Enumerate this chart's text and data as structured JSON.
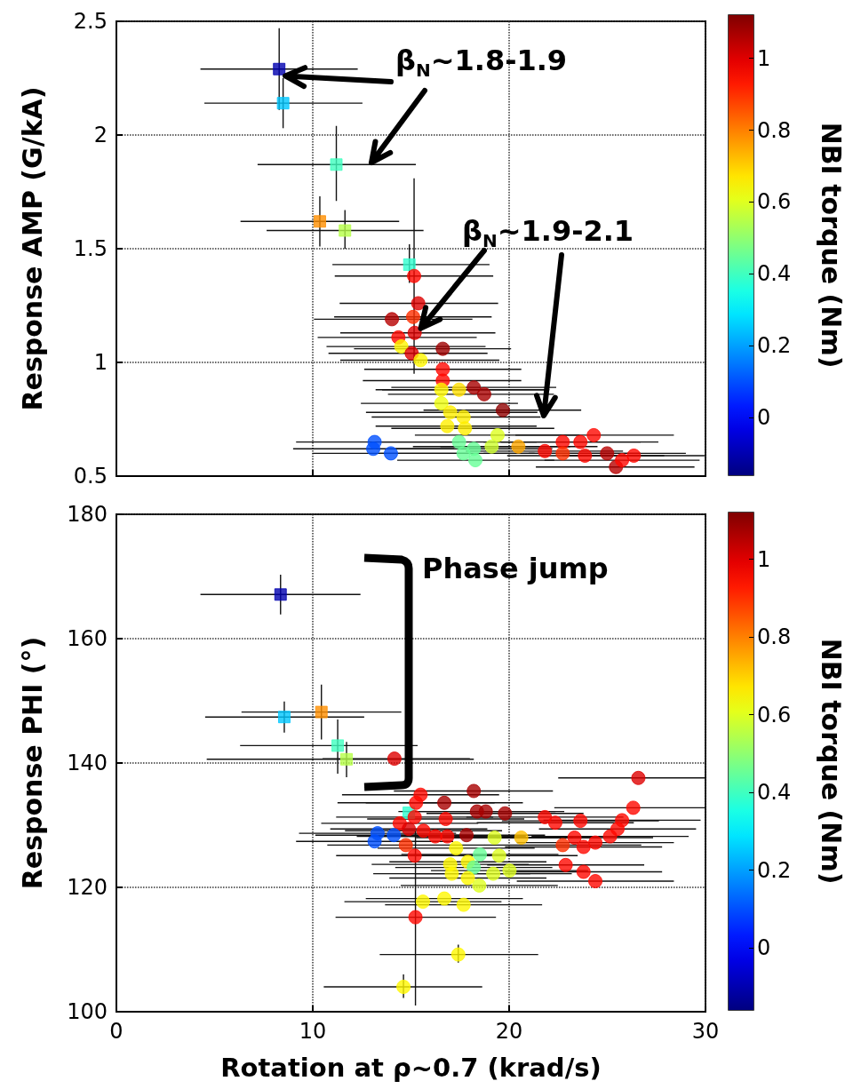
{
  "chart_data": [
    {
      "type": "scatter",
      "ylabel": "Response AMP (G/kA)",
      "clabel": "NBI torque (Nm)",
      "xlim": [
        0,
        30
      ],
      "xticks": [
        0,
        10,
        20,
        30
      ],
      "ylim": [
        0.5,
        2.5
      ],
      "yticks": [
        0.5,
        1,
        1.5,
        2,
        2.5
      ],
      "clim": [
        -0.16,
        1.12
      ],
      "cticks": [
        0,
        0.2,
        0.4,
        0.6,
        0.8,
        1
      ],
      "grid": true,
      "tick_labels": "y",
      "annotations": [
        {
          "text": "β$_{N}$~1.8-1.9",
          "x": 8.6,
          "y": 2.26
        },
        {
          "text": "β$_{N}$~1.9-2.1",
          "x": 15.5,
          "y": 1.15
        }
      ],
      "series": [
        {
          "marker": "square",
          "x": [
            8.29,
            8.49,
            11.2,
            10.36,
            11.64,
            14.92
          ],
          "values": [
            2.29,
            2.14,
            1.87,
            1.62,
            1.58,
            1.43
          ],
          "cvalues": [
            -0.1,
            0.25,
            0.4,
            0.78,
            0.55,
            0.38
          ],
          "colors": [
            "#0000af",
            "#00c7ff",
            "#40ffbf",
            "#ff8f00",
            "#b7ff48",
            "#30ffcf"
          ],
          "xerrors": [
            [
              4.28,
              12.29
            ],
            [
              4.48,
              12.53
            ],
            [
              7.19,
              15.25
            ],
            [
              6.32,
              14.4
            ],
            [
              7.65,
              15.64
            ],
            [
              11.0,
              19.0
            ]
          ],
          "errors": [
            [
              2.11,
              2.47
            ],
            [
              2.03,
              2.25
            ],
            [
              1.71,
              2.04
            ],
            [
              1.51,
              1.73
            ],
            [
              1.5,
              1.67
            ],
            [
              1.35,
              1.52
            ]
          ]
        },
        {
          "marker": "circle",
          "x": [
            15.16,
            15.37,
            14.03,
            15.11,
            15.19,
            14.36,
            14.51,
            15.04,
            15.49,
            16.62,
            16.62,
            16.62,
            16.55,
            17.45,
            18.2,
            18.73,
            16.55,
            19.68,
            17.0,
            17.68,
            16.85,
            17.75,
            19.41,
            17.45,
            20.47,
            18.2,
            17.68,
            18.28,
            19.11,
            13.15,
            13.08,
            13.98,
            24.31,
            22.73,
            23.63,
            21.82,
            22.73,
            23.86,
            24.99,
            26.35,
            25.44,
            25.75
          ],
          "values": [
            1.38,
            1.26,
            1.19,
            1.2,
            1.13,
            1.11,
            1.07,
            1.04,
            1.01,
            1.06,
            0.97,
            0.92,
            0.88,
            0.88,
            0.89,
            0.86,
            0.82,
            0.79,
            0.78,
            0.76,
            0.72,
            0.71,
            0.68,
            0.65,
            0.63,
            0.62,
            0.6,
            0.57,
            0.63,
            0.65,
            0.62,
            0.6,
            0.68,
            0.65,
            0.65,
            0.61,
            0.6,
            0.59,
            0.6,
            0.59,
            0.54,
            0.57
          ],
          "cvalues": [
            0.95,
            1.0,
            1.05,
            0.9,
            1.0,
            0.95,
            0.65,
            1.0,
            0.65,
            1.08,
            0.95,
            0.95,
            0.65,
            0.68,
            1.07,
            1.07,
            0.62,
            1.1,
            0.66,
            0.66,
            0.66,
            0.66,
            0.6,
            0.45,
            0.75,
            0.45,
            0.45,
            0.45,
            0.58,
            0.1,
            0.1,
            0.1,
            0.95,
            0.95,
            0.95,
            0.95,
            0.9,
            0.95,
            1.05,
            0.95,
            1.05,
            0.95
          ],
          "colors": [
            "#ff0800",
            "#df0000",
            "#b70000",
            "#ff3000",
            "#df0000",
            "#ff0800",
            "#fff700",
            "#df0000",
            "#fff700",
            "#9f0000",
            "#ff0800",
            "#ff0800",
            "#fff700",
            "#ffdf00",
            "#a70000",
            "#a70000",
            "#efff10",
            "#8f0000",
            "#ffef00",
            "#ffef00",
            "#ffef00",
            "#ffef00",
            "#dfff20",
            "#68ff97",
            "#ffa700",
            "#68ff97",
            "#68ff97",
            "#68ff97",
            "#cfff30",
            "#0050ff",
            "#0050ff",
            "#0050ff",
            "#ff0800",
            "#ff0800",
            "#ff0800",
            "#ff0800",
            "#ff3000",
            "#ff0800",
            "#b70000",
            "#ff0800",
            "#b70000",
            "#ff0800"
          ],
          "xerrors": [
            [
              11.12,
              19.19
            ],
            [
              11.37,
              19.44
            ],
            [
              10.06,
              18.13
            ],
            [
              11.09,
              19.11
            ],
            [
              11.4,
              19.3
            ],
            [
              10.25,
              18.35
            ],
            [
              10.7,
              18.8
            ],
            [
              10.8,
              18.9
            ],
            [
              11.4,
              19.5
            ],
            [
              12.1,
              20.1
            ],
            [
              12.62,
              20.62
            ],
            [
              12.55,
              20.62
            ],
            [
              13.53,
              22.05
            ],
            [
              13.2,
              21.8
            ],
            [
              14.0,
              22.4
            ],
            [
              13.83,
              22.28
            ],
            [
              12.45,
              20.45
            ],
            [
              15.64,
              23.67
            ],
            [
              12.71,
              21.44
            ],
            [
              13.0,
              21.6
            ],
            [
              13.2,
              21.4
            ],
            [
              14.0,
              22.3
            ],
            [
              15.2,
              23.6
            ],
            [
              13.5,
              21.4
            ],
            [
              16.5,
              24.5
            ],
            [
              14.2,
              22.2
            ],
            [
              13.4,
              21.3
            ],
            [
              14.3,
              22.3
            ],
            [
              15.1,
              23.1
            ],
            [
              9.15,
              17.45
            ],
            [
              9.0,
              17.2
            ],
            [
              9.98,
              18.05
            ],
            [
              20.32,
              28.39
            ],
            [
              18.7,
              26.7
            ],
            [
              19.6,
              27.6
            ],
            [
              17.8,
              25.8
            ],
            [
              18.7,
              26.7
            ],
            [
              19.9,
              27.9
            ],
            [
              21.0,
              29.0
            ],
            [
              22.7,
              29.95
            ],
            [
              21.36,
              29.44
            ],
            [
              21.8,
              29.7
            ]
          ],
          "errors": [
            [
              0.95,
              1.81
            ],
            null,
            null,
            null,
            null,
            null,
            null,
            null,
            null,
            null,
            null,
            null,
            null,
            null,
            null,
            null,
            null,
            null,
            null,
            null,
            null,
            null,
            null,
            null,
            null,
            null,
            null,
            null,
            null,
            null,
            null,
            null,
            null,
            null,
            null,
            null,
            null,
            null,
            null,
            null,
            null,
            null
          ]
        }
      ]
    },
    {
      "type": "scatter",
      "xlabel": "Rotation at ρ~0.7 (krad/s)",
      "ylabel": "Response PHI (°)",
      "clabel": "NBI torque (Nm)",
      "xlim": [
        0,
        30
      ],
      "xticks": [
        0,
        10,
        20,
        30
      ],
      "ylim": [
        100,
        180
      ],
      "yticks": [
        100,
        120,
        140,
        160,
        180
      ],
      "clim": [
        -0.16,
        1.12
      ],
      "cticks": [
        0,
        0.2,
        0.4,
        0.6,
        0.8,
        1
      ],
      "grid": true,
      "annotations": [
        "Phase jump"
      ],
      "series": [
        {
          "marker": "square",
          "x": [
            8.36,
            8.55,
            10.44,
            11.27,
            11.72,
            14.89
          ],
          "values": [
            167.1,
            147.4,
            148.2,
            142.8,
            140.6,
            132.0
          ],
          "cvalues": [
            -0.1,
            0.25,
            0.78,
            0.4,
            0.55,
            0.38
          ],
          "colors": [
            "#0000af",
            "#00c7ff",
            "#ff8f00",
            "#40ffbf",
            "#b7ff48",
            "#30ffcf"
          ],
          "xerrors": [
            [
              4.28,
              12.43
            ],
            [
              4.52,
              12.62
            ],
            [
              6.37,
              14.51
            ],
            [
              6.3,
              15.34
            ],
            [
              4.6,
              18.2
            ],
            null
          ],
          "errors": [
            [
              163.9,
              170.3
            ],
            [
              144.9,
              149.9
            ],
            [
              143.8,
              152.6
            ],
            [
              138.3,
              147.0
            ],
            [
              137.7,
              143.4
            ],
            null
          ]
        },
        {
          "marker": "circle",
          "x": [
            14.16,
            26.58,
            15.49,
            18.2,
            16.7,
            15.26,
            18.36,
            18.81,
            19.79,
            21.82,
            22.35,
            23.63,
            26.32,
            25.75,
            25.52,
            25.14,
            23.33,
            24.39,
            22.73,
            23.79,
            22.88,
            23.79,
            24.39,
            16.77,
            14.43,
            15.19,
            14.89,
            16.24,
            16.85,
            17.83,
            15.64,
            14.74,
            15.19,
            20.62,
            19.26,
            17.3,
            18.51,
            17.9,
            18.2,
            19.49,
            20.02,
            17.0,
            17.08,
            17.9,
            19.19,
            13.3,
            14.13,
            13.15,
            18.48,
            15.61,
            16.7,
            17.68,
            15.23,
            17.41,
            14.62
          ],
          "values": [
            140.7,
            137.6,
            134.9,
            135.5,
            133.6,
            133.6,
            132.2,
            132.2,
            131.9,
            131.3,
            130.4,
            130.7,
            132.8,
            130.8,
            129.4,
            128.2,
            128.0,
            127.2,
            126.8,
            126.5,
            123.6,
            122.5,
            121.0,
            131.0,
            130.3,
            131.3,
            129.4,
            128.2,
            128.2,
            128.4,
            129.1,
            126.8,
            125.1,
            128.0,
            128.0,
            126.3,
            125.3,
            124.1,
            123.2,
            125.1,
            122.7,
            123.7,
            122.2,
            121.5,
            122.2,
            128.7,
            128.4,
            127.4,
            120.3,
            117.7,
            118.2,
            117.2,
            115.2,
            109.2,
            104.0
          ],
          "cvalues": [
            1.0,
            1.0,
            0.95,
            1.07,
            1.07,
            0.95,
            1.07,
            1.07,
            1.07,
            0.95,
            0.95,
            0.95,
            0.95,
            0.95,
            0.95,
            0.95,
            0.95,
            0.95,
            0.9,
            0.95,
            0.95,
            0.95,
            0.95,
            0.95,
            0.95,
            0.95,
            1.0,
            0.95,
            0.95,
            1.07,
            0.95,
            0.9,
            0.95,
            0.72,
            0.6,
            0.65,
            0.45,
            0.65,
            0.45,
            0.6,
            0.6,
            0.65,
            0.65,
            0.65,
            0.6,
            0.1,
            0.1,
            0.1,
            0.6,
            0.65,
            0.65,
            0.65,
            0.95,
            0.65,
            0.65
          ],
          "colors": [
            "#df0000",
            "#df0000",
            "#ff0800",
            "#a70000",
            "#a70000",
            "#ff0800",
            "#a70000",
            "#a70000",
            "#a70000",
            "#ff0800",
            "#ff0800",
            "#ff0800",
            "#ff0800",
            "#ff0800",
            "#ff0800",
            "#ff0800",
            "#ff0800",
            "#ff0800",
            "#ff3000",
            "#ff0800",
            "#ff0800",
            "#ff0800",
            "#ff0800",
            "#ff0800",
            "#ff0800",
            "#ff0800",
            "#df0000",
            "#ff0800",
            "#ff0800",
            "#a70000",
            "#ff0800",
            "#ff3000",
            "#ff0800",
            "#ffbf00",
            "#dfff20",
            "#fff700",
            "#68ff97",
            "#fff700",
            "#68ff97",
            "#dfff20",
            "#dfff20",
            "#fff700",
            "#fff700",
            "#fff700",
            "#dfff20",
            "#0050ff",
            "#0050ff",
            "#0050ff",
            "#dfff20",
            "#fff700",
            "#fff700",
            "#fff700",
            "#ff0800",
            "#fff700",
            "#fff700"
          ],
          "xerrors": [
            [
              10.5,
              18.0
            ],
            [
              22.5,
              30
            ],
            4,
            [
              14.13,
              22.23
            ],
            4,
            4,
            4,
            4,
            4,
            4,
            4,
            4,
            [
              22.3,
              30
            ],
            [
              21.75,
              29.75
            ],
            4,
            4,
            4,
            4,
            4,
            4,
            4,
            4,
            4,
            4,
            4,
            4,
            4,
            4,
            4,
            4,
            4,
            4,
            4,
            4,
            4,
            4,
            4,
            4,
            4,
            4,
            4,
            4,
            4,
            4,
            4,
            4,
            4,
            4,
            4,
            4,
            4,
            4,
            [
              11.16,
              19.33
            ],
            [
              13.41,
              21.48
            ],
            [
              10.56,
              18.63
            ]
          ],
          "errors": [
            null,
            null,
            null,
            null,
            null,
            null,
            null,
            null,
            null,
            null,
            null,
            null,
            null,
            null,
            null,
            null,
            null,
            null,
            null,
            null,
            null,
            null,
            null,
            null,
            null,
            null,
            null,
            null,
            null,
            null,
            null,
            null,
            null,
            null,
            null,
            null,
            null,
            null,
            null,
            null,
            null,
            null,
            null,
            null,
            null,
            null,
            null,
            null,
            null,
            null,
            null,
            null,
            [
              101,
              129
            ],
            [
              107.9,
              110.8
            ],
            [
              102.2,
              106.0
            ]
          ]
        }
      ]
    }
  ]
}
